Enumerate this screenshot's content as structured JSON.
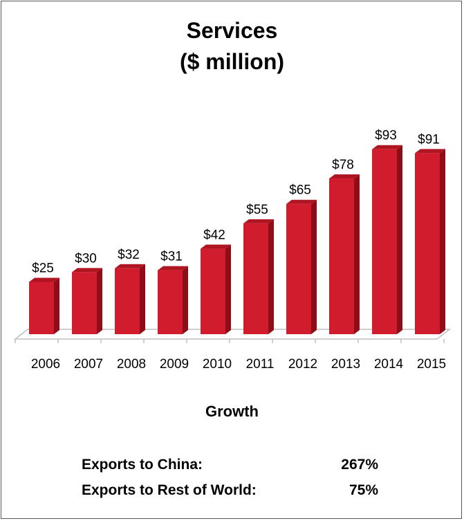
{
  "chart_data": {
    "type": "bar",
    "title": "Services",
    "subtitle": "($ million)",
    "categories": [
      "2006",
      "2007",
      "2008",
      "2009",
      "2010",
      "2011",
      "2012",
      "2013",
      "2014",
      "2015"
    ],
    "values": [
      25,
      30,
      32,
      31,
      42,
      55,
      65,
      78,
      93,
      91
    ],
    "data_labels": [
      "$25",
      "$30",
      "$32",
      "$31",
      "$42",
      "$55",
      "$65",
      "$78",
      "$93",
      "$91"
    ],
    "ylim": [
      0,
      100
    ],
    "grid": false,
    "legend": "none",
    "style": "3d-column",
    "bar_color": "#d01c2c"
  },
  "growth": {
    "title": "Growth",
    "rows": [
      {
        "label": "Exports to China:",
        "value": "267%"
      },
      {
        "label": "Exports to Rest of World:",
        "value": "75%"
      }
    ]
  },
  "colors": {
    "bar_front": "#d01c2c",
    "bar_side": "#8e0e18",
    "bar_top": "#b01522",
    "axis": "#bfbfbf"
  }
}
